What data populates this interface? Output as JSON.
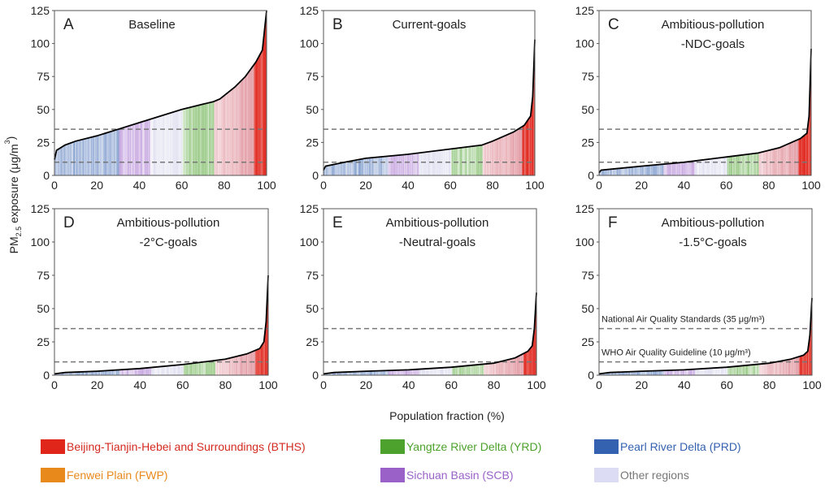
{
  "chart_data": {
    "type": "line",
    "ylabel": "PM2.5 exposure (μg/m³)",
    "ylabel_parts": {
      "pre": "PM",
      "sub": "2.5",
      "post": " exposure (μg/m",
      "sup": "3",
      "end": ")"
    },
    "xlabel": "Population fraction (%)",
    "xlim": [
      0,
      100
    ],
    "ylim": [
      0,
      125
    ],
    "xticks": [
      "0",
      "20",
      "40",
      "60",
      "80",
      "100"
    ],
    "yticks": [
      "0",
      "25",
      "50",
      "75",
      "100",
      "125"
    ],
    "reference_lines": [
      {
        "value": 35,
        "label": "National Air Quality Standards (35 μg/m³)"
      },
      {
        "value": 10,
        "label": "WHO Air Quality Guideline (10 μg/m³)"
      }
    ],
    "region_bands": [
      {
        "from": 0,
        "to": 30,
        "region": "PRD"
      },
      {
        "from": 30,
        "to": 45,
        "region": "SCB"
      },
      {
        "from": 45,
        "to": 60,
        "region": "Other"
      },
      {
        "from": 60,
        "to": 75,
        "region": "YRD"
      },
      {
        "from": 75,
        "to": 94,
        "region": "FWP"
      },
      {
        "from": 94,
        "to": 100,
        "region": "BTHS"
      }
    ],
    "panels": [
      {
        "letter": "A",
        "title": [
          "Baseline"
        ],
        "x": [
          0,
          1,
          5,
          10,
          20,
          30,
          40,
          50,
          60,
          70,
          75,
          78,
          85,
          90,
          95,
          98,
          99,
          100
        ],
        "y": [
          12,
          19,
          23,
          26,
          30,
          35,
          40,
          45,
          50,
          54,
          56,
          58,
          67,
          75,
          86,
          95,
          110,
          125
        ]
      },
      {
        "letter": "B",
        "title": [
          "Current-goals"
        ],
        "x": [
          0,
          1,
          10,
          20,
          40,
          60,
          75,
          80,
          90,
          95,
          98,
          99,
          100
        ],
        "y": [
          4,
          7,
          10,
          13,
          16,
          20,
          23,
          26,
          33,
          38,
          45,
          60,
          103
        ]
      },
      {
        "letter": "C",
        "title": [
          "Ambitious-pollution",
          "-NDC-goals"
        ],
        "x": [
          0,
          1,
          20,
          40,
          60,
          75,
          85,
          95,
          98,
          99,
          100
        ],
        "y": [
          2,
          4,
          7,
          10,
          14,
          17,
          21,
          28,
          32,
          45,
          96
        ]
      },
      {
        "letter": "D",
        "title": [
          "Ambitious-pollution",
          "-2°C-goals"
        ],
        "x": [
          0,
          5,
          20,
          40,
          60,
          80,
          90,
          96,
          98,
          99,
          100
        ],
        "y": [
          1,
          2,
          3,
          5,
          8,
          12,
          16,
          20,
          25,
          40,
          75
        ]
      },
      {
        "letter": "E",
        "title": [
          "Ambitious-pollution",
          "-Neutral-goals"
        ],
        "x": [
          0,
          5,
          20,
          40,
          60,
          80,
          90,
          96,
          98,
          99,
          100
        ],
        "y": [
          1,
          2,
          3,
          4,
          6,
          9,
          13,
          18,
          22,
          35,
          62
        ]
      },
      {
        "letter": "F",
        "title": [
          "Ambitious-pollution",
          "-1.5°C-goals"
        ],
        "x": [
          0,
          5,
          20,
          40,
          60,
          80,
          90,
          96,
          98,
          99,
          100
        ],
        "y": [
          1,
          2,
          3,
          4,
          6,
          9,
          12,
          15,
          18,
          30,
          58
        ],
        "show_ref_labels": true
      }
    ],
    "legend": [
      {
        "key": "BTHS",
        "label": "Beijing-Tianjin-Hebei and Surroundings (BTHS)",
        "color": "#e0251b",
        "text_color": "#d42a20"
      },
      {
        "key": "YRD",
        "label": "Yangtze River Delta (YRD)",
        "color": "#4ca22c",
        "text_color": "#4ca22c"
      },
      {
        "key": "PRD",
        "label": "Pearl River Delta (PRD)",
        "color": "#3461b0",
        "text_color": "#3461b0"
      },
      {
        "key": "FWP",
        "label": "Fenwei Plain (FWP)",
        "color": "#e8891c",
        "text_color": "#e8891c"
      },
      {
        "key": "SCB",
        "label": "Sichuan Basin (SCB)",
        "color": "#9a62c8",
        "text_color": "#9a62c8"
      },
      {
        "key": "Other",
        "label": "Other regions",
        "color": "#dcdcf4",
        "text_color": "#777777"
      }
    ]
  }
}
